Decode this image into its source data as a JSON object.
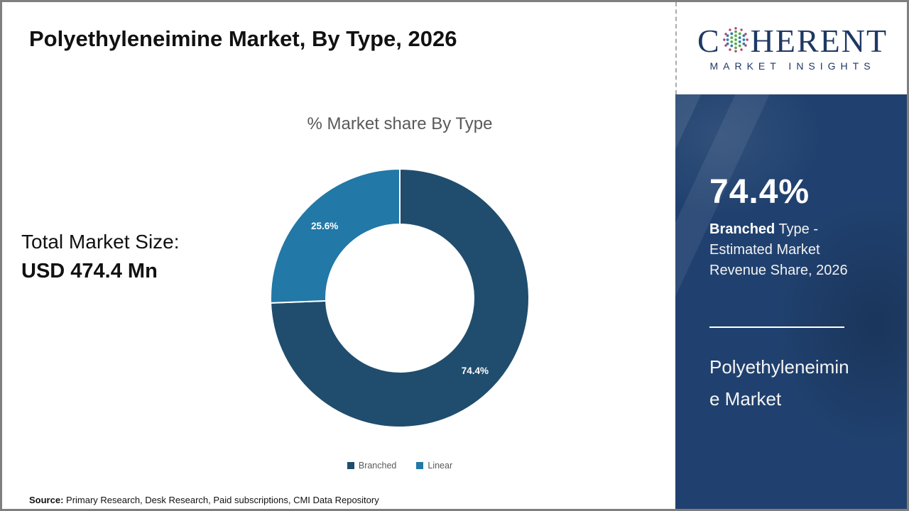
{
  "page": {
    "title": "Polyethyleneimine Market, By Type, 2026",
    "source_label": "Source:",
    "source_text": " Primary Research, Desk Research, Paid subscriptions, CMI Data Repository"
  },
  "left_panel": {
    "total_label": "Total Market Size:",
    "total_value": "USD 474.4 Mn"
  },
  "chart_data": {
    "type": "donut",
    "title": "% Market share By Type",
    "categories": [
      "Branched",
      "Linear"
    ],
    "values": [
      74.4,
      25.6
    ],
    "labels": [
      "74.4%",
      "25.6%"
    ],
    "colors": [
      "#204D6D",
      "#2278A6"
    ],
    "start_angle_deg": 0,
    "direction": "clockwise",
    "inner_radius_ratio": 0.57,
    "legend_position": "bottom",
    "label_color": "#ffffff"
  },
  "logo": {
    "word_start": "C",
    "word_end": "HERENT",
    "subtitle": "MARKET INSIGHTS",
    "navy": "#1f3864"
  },
  "sidebar": {
    "stat_value": "74.4%",
    "desc_bold": "Branched",
    "desc_rest": " Type - Estimated Market Revenue Share, 2026",
    "market_line1": "Polyethyleneimin",
    "market_line2": "e Market"
  }
}
